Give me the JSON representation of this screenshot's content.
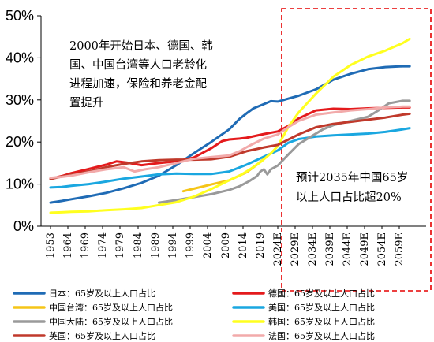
{
  "chart_data": {
    "type": "line",
    "title": "",
    "xlabel": "",
    "ylabel": "",
    "ylim": [
      0,
      50
    ],
    "yticks": [
      "0%",
      "10%",
      "20%",
      "30%",
      "40%",
      "50%"
    ],
    "xticks": [
      "1953",
      "1964",
      "1969",
      "1974",
      "1979",
      "1984",
      "1989",
      "1994",
      "1999",
      "2004",
      "2009",
      "2014",
      "2019",
      "2024E",
      "2029E",
      "2034E",
      "2039E",
      "2044E",
      "2049E",
      "2054E",
      "2059E"
    ],
    "forecast_start": 2024,
    "grid": false,
    "legend_position": "bottom",
    "annotations": {
      "left_lines": [
        "2000年开始日本、德国、韩",
        "国、中国台湾等人口老龄化",
        "进程加速，保险和养老金配",
        "置提升"
      ],
      "right_lines": [
        "预计2035年中国65岁",
        "以上人口占比超20%"
      ]
    },
    "series": [
      {
        "name": "日本：65岁及以上人口占比",
        "color": "#1f6bb5",
        "points": [
          [
            1953,
            5.6
          ],
          [
            1960,
            6.0
          ],
          [
            1965,
            6.4
          ],
          [
            1970,
            7.1
          ],
          [
            1975,
            7.9
          ],
          [
            1980,
            9.0
          ],
          [
            1985,
            10.3
          ],
          [
            1990,
            12.0
          ],
          [
            1995,
            14.5
          ],
          [
            2000,
            17.3
          ],
          [
            2005,
            20.0
          ],
          [
            2010,
            23.0
          ],
          [
            2013,
            25.5
          ],
          [
            2015,
            26.8
          ],
          [
            2017,
            28.0
          ],
          [
            2020,
            29.0
          ],
          [
            2022,
            29.7
          ],
          [
            2024,
            29.6
          ],
          [
            2027,
            30.3
          ],
          [
            2030,
            31.0
          ],
          [
            2035,
            32.5
          ],
          [
            2040,
            34.8
          ],
          [
            2045,
            36.2
          ],
          [
            2050,
            37.3
          ],
          [
            2055,
            37.8
          ],
          [
            2060,
            38.0
          ],
          [
            2062,
            38.0
          ]
        ]
      },
      {
        "name": "德国：65岁及以上人口占比",
        "color": "#e41a1c",
        "points": [
          [
            1953,
            11.3
          ],
          [
            1960,
            11.9
          ],
          [
            1965,
            12.6
          ],
          [
            1970,
            13.6
          ],
          [
            1975,
            14.6
          ],
          [
            1978,
            15.4
          ],
          [
            1981,
            15.1
          ],
          [
            1985,
            14.5
          ],
          [
            1990,
            15.0
          ],
          [
            1995,
            15.4
          ],
          [
            2000,
            16.3
          ],
          [
            2005,
            18.5
          ],
          [
            2008,
            20.2
          ],
          [
            2010,
            20.6
          ],
          [
            2013,
            20.8
          ],
          [
            2015,
            21.0
          ],
          [
            2020,
            21.9
          ],
          [
            2024,
            22.5
          ],
          [
            2027,
            23.8
          ],
          [
            2030,
            25.6
          ],
          [
            2035,
            27.5
          ],
          [
            2040,
            27.9
          ],
          [
            2045,
            27.8
          ],
          [
            2050,
            28.0
          ],
          [
            2055,
            28.1
          ],
          [
            2060,
            28.2
          ],
          [
            2062,
            28.2
          ]
        ]
      },
      {
        "name": "中国台湾：65岁及以上人口占比",
        "color": "#f5c518",
        "points": [
          [
            1997,
            8.3
          ],
          [
            2000,
            8.9
          ],
          [
            2005,
            9.9
          ],
          [
            2010,
            10.9
          ],
          [
            2015,
            12.8
          ],
          [
            2018,
            14.6
          ],
          [
            2020,
            16.0
          ]
        ]
      },
      {
        "name": "美国：65岁及以上人口占比",
        "color": "#1aa7e0",
        "points": [
          [
            1953,
            9.2
          ],
          [
            1960,
            9.3
          ],
          [
            1965,
            9.6
          ],
          [
            1970,
            10.0
          ],
          [
            1975,
            10.6
          ],
          [
            1980,
            11.3
          ],
          [
            1985,
            11.8
          ],
          [
            1990,
            12.3
          ],
          [
            1995,
            12.5
          ],
          [
            2000,
            12.4
          ],
          [
            2005,
            12.4
          ],
          [
            2010,
            13.0
          ],
          [
            2015,
            14.6
          ],
          [
            2020,
            16.5
          ],
          [
            2024,
            18.0
          ],
          [
            2027,
            19.8
          ],
          [
            2030,
            20.7
          ],
          [
            2035,
            21.3
          ],
          [
            2040,
            21.6
          ],
          [
            2045,
            21.8
          ],
          [
            2050,
            22.0
          ],
          [
            2055,
            22.4
          ],
          [
            2060,
            23.0
          ],
          [
            2062,
            23.3
          ]
        ]
      },
      {
        "name": "中国大陆：65岁及以上人口占比",
        "color": "#9a9a9a",
        "points": [
          [
            1990,
            5.6
          ],
          [
            1995,
            6.2
          ],
          [
            2000,
            6.9
          ],
          [
            2005,
            7.6
          ],
          [
            2010,
            8.6
          ],
          [
            2013,
            9.5
          ],
          [
            2016,
            10.8
          ],
          [
            2018,
            11.9
          ],
          [
            2019,
            13.0
          ],
          [
            2020,
            13.5
          ],
          [
            2021,
            12.3
          ],
          [
            2022,
            13.5
          ],
          [
            2024,
            14.4
          ],
          [
            2027,
            17.0
          ],
          [
            2030,
            19.5
          ],
          [
            2034,
            21.5
          ],
          [
            2037,
            23.0
          ],
          [
            2040,
            24.0
          ],
          [
            2045,
            25.0
          ],
          [
            2050,
            26.0
          ],
          [
            2053,
            27.5
          ],
          [
            2056,
            29.2
          ],
          [
            2060,
            29.8
          ],
          [
            2062,
            29.8
          ]
        ]
      },
      {
        "name": "韩国：65岁及以上人口占比",
        "color": "#ffff1f",
        "points": [
          [
            1953,
            3.2
          ],
          [
            1960,
            3.3
          ],
          [
            1965,
            3.4
          ],
          [
            1970,
            3.5
          ],
          [
            1975,
            3.8
          ],
          [
            1980,
            4.0
          ],
          [
            1985,
            4.3
          ],
          [
            1990,
            5.0
          ],
          [
            1995,
            5.7
          ],
          [
            2000,
            7.0
          ],
          [
            2005,
            8.8
          ],
          [
            2010,
            10.9
          ],
          [
            2013,
            12.0
          ],
          [
            2016,
            13.5
          ],
          [
            2019,
            15.2
          ],
          [
            2022,
            17.3
          ],
          [
            2024,
            19.0
          ],
          [
            2027,
            23.5
          ],
          [
            2030,
            27.0
          ],
          [
            2035,
            31.5
          ],
          [
            2040,
            35.5
          ],
          [
            2045,
            38.3
          ],
          [
            2050,
            40.3
          ],
          [
            2055,
            41.7
          ],
          [
            2060,
            43.5
          ],
          [
            2062,
            44.5
          ]
        ]
      },
      {
        "name": "英国：65岁及以上人口占比",
        "color": "#c0392b",
        "points": [
          [
            1953,
            11.2
          ],
          [
            1960,
            11.8
          ],
          [
            1965,
            12.2
          ],
          [
            1970,
            13.0
          ],
          [
            1975,
            14.0
          ],
          [
            1980,
            14.8
          ],
          [
            1985,
            15.4
          ],
          [
            1990,
            15.7
          ],
          [
            1995,
            15.8
          ],
          [
            2000,
            15.8
          ],
          [
            2005,
            15.9
          ],
          [
            2010,
            16.5
          ],
          [
            2015,
            17.8
          ],
          [
            2020,
            18.7
          ],
          [
            2024,
            19.3
          ],
          [
            2030,
            21.8
          ],
          [
            2035,
            23.5
          ],
          [
            2040,
            24.3
          ],
          [
            2045,
            24.8
          ],
          [
            2050,
            25.3
          ],
          [
            2055,
            25.8
          ],
          [
            2060,
            26.5
          ],
          [
            2062,
            26.7
          ]
        ]
      },
      {
        "name": "法国：65岁及以上人口占比",
        "color": "#f2aaaa",
        "points": [
          [
            1953,
            11.5
          ],
          [
            1960,
            11.7
          ],
          [
            1965,
            12.0
          ],
          [
            1970,
            12.8
          ],
          [
            1975,
            13.5
          ],
          [
            1980,
            14.0
          ],
          [
            1983,
            13.0
          ],
          [
            1986,
            13.5
          ],
          [
            1990,
            14.0
          ],
          [
            1995,
            15.0
          ],
          [
            2000,
            16.0
          ],
          [
            2005,
            16.4
          ],
          [
            2010,
            16.8
          ],
          [
            2013,
            17.8
          ],
          [
            2016,
            19.2
          ],
          [
            2020,
            20.8
          ],
          [
            2024,
            21.8
          ],
          [
            2027,
            23.5
          ],
          [
            2030,
            25.0
          ],
          [
            2035,
            26.5
          ],
          [
            2040,
            27.0
          ],
          [
            2045,
            27.5
          ],
          [
            2050,
            27.8
          ],
          [
            2055,
            28.2
          ],
          [
            2060,
            28.4
          ],
          [
            2062,
            28.4
          ]
        ]
      }
    ]
  }
}
